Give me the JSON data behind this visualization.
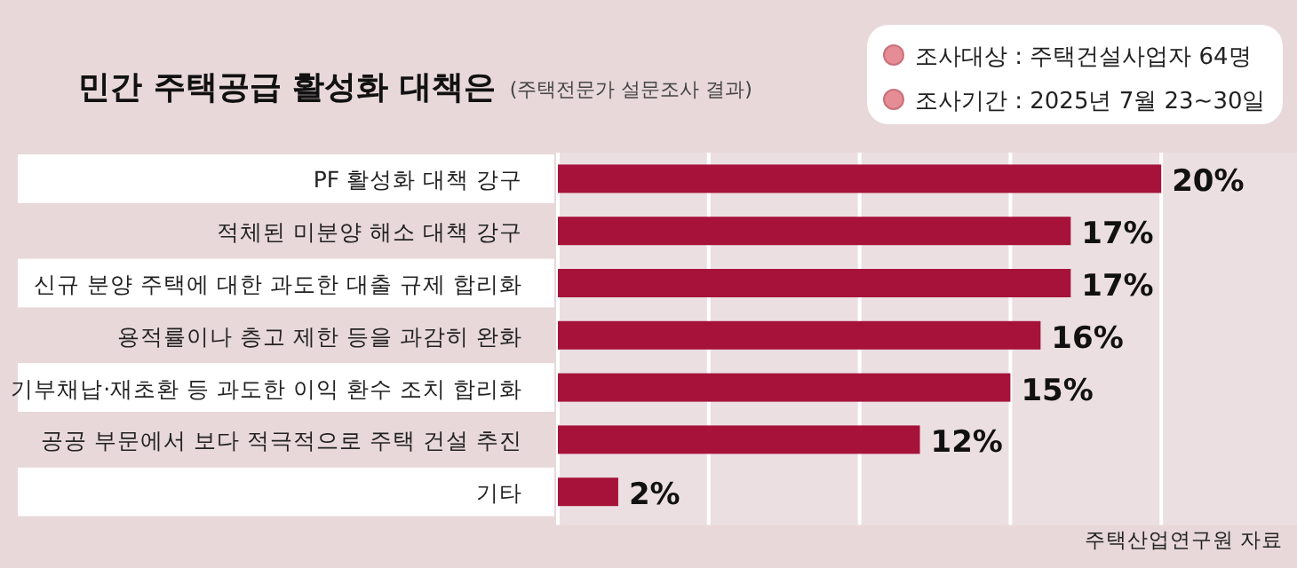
{
  "chart_data": {
    "type": "bar",
    "orientation": "horizontal",
    "title": "민간 주택공급 활성화 대책은",
    "subtitle": "(주택전문가 설문조사 결과)",
    "categories": [
      "PF 활성화 대책 강구",
      "적체된 미분양 해소 대책 강구",
      "신규 분양 주택에 대한 과도한 대출 규제 합리화",
      "용적률이나 층고 제한 등을 과감히 완화",
      "기부채납·재초환 등 과도한 이익 환수 조치 합리화",
      "공공 부문에서 보다 적극적으로 주택 건설 추진",
      "기타"
    ],
    "values": [
      20,
      17,
      17,
      16,
      15,
      12,
      2
    ],
    "value_labels": [
      "20%",
      "17%",
      "17%",
      "16%",
      "15%",
      "12%",
      "2%"
    ],
    "color": "#a6123a",
    "xlim": [
      0,
      24.5
    ],
    "xticks": [
      {
        "value": 0,
        "label": null
      },
      {
        "value": 5,
        "label": null
      },
      {
        "value": 10,
        "label": null
      },
      {
        "value": 15,
        "label": null
      },
      {
        "value": 20,
        "label": null
      }
    ],
    "grid": "x",
    "annotations": [
      "조사대상 : 주택건설사업자 64명",
      "조사기간 : 2025년 7월 23~30일",
      "주택산업연구원 자료"
    ]
  }
}
